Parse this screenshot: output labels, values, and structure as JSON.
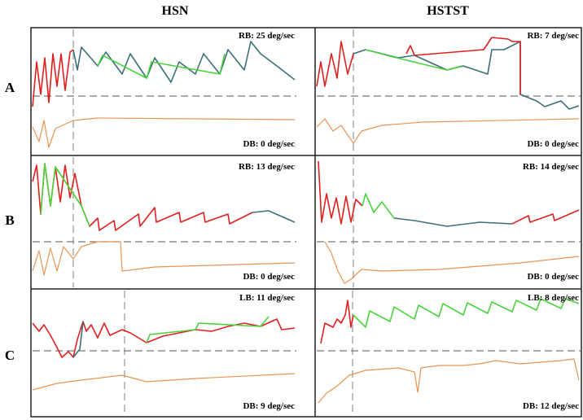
{
  "headers": [
    "HSN",
    "HSTST"
  ],
  "rows": [
    {
      "label": "A",
      "panels": [
        {
          "top": "RB: 25 deg/sec",
          "bottom": "DB: 0 deg/sec"
        },
        {
          "top": "RB: 7 deg/sec",
          "bottom": "DB: 0 deg/sec"
        }
      ]
    },
    {
      "label": "B",
      "panels": [
        {
          "top": "RB: 13 deg/sec",
          "bottom": "DB: 0  deg/sec"
        },
        {
          "top": "RB: 14 deg/sec",
          "bottom": "DB: 0 deg/sec"
        }
      ]
    },
    {
      "label": "C",
      "panels": [
        {
          "top": "LB: 11 deg/sec",
          "bottom": "DB: 9 deg/sec"
        },
        {
          "top": "LB: 8 deg/sec",
          "bottom": "DB: 12 deg/sec"
        }
      ]
    }
  ]
}
